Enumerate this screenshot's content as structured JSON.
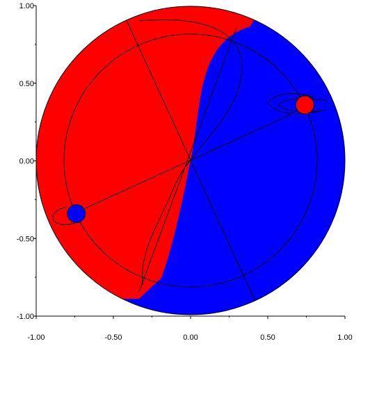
{
  "chart_data": {
    "type": "other",
    "description_free": true,
    "xlim": [
      -1.0,
      1.0
    ],
    "ylim": [
      -1.0,
      1.0
    ],
    "x_ticks": [
      -1.0,
      -0.5,
      0.0,
      0.5,
      1.0
    ],
    "y_ticks": [
      -1.0,
      -0.5,
      0.0,
      0.5,
      1.0
    ],
    "x_tick_labels": [
      "-1.00",
      "-0.50",
      "0.00",
      "0.50",
      "1.00"
    ],
    "y_tick_labels": [
      "-1.00",
      "-0.50",
      "0.00",
      "0.50",
      "1.00"
    ],
    "grid": false,
    "markers": [
      {
        "x": 0.74,
        "y": 0.36,
        "color": "#ff0000"
      },
      {
        "x": -0.74,
        "y": -0.34,
        "color": "#0000ff"
      }
    ],
    "colors": {
      "region_a": "#ff0000",
      "region_b": "#0000ff",
      "lines": "#000000"
    }
  }
}
